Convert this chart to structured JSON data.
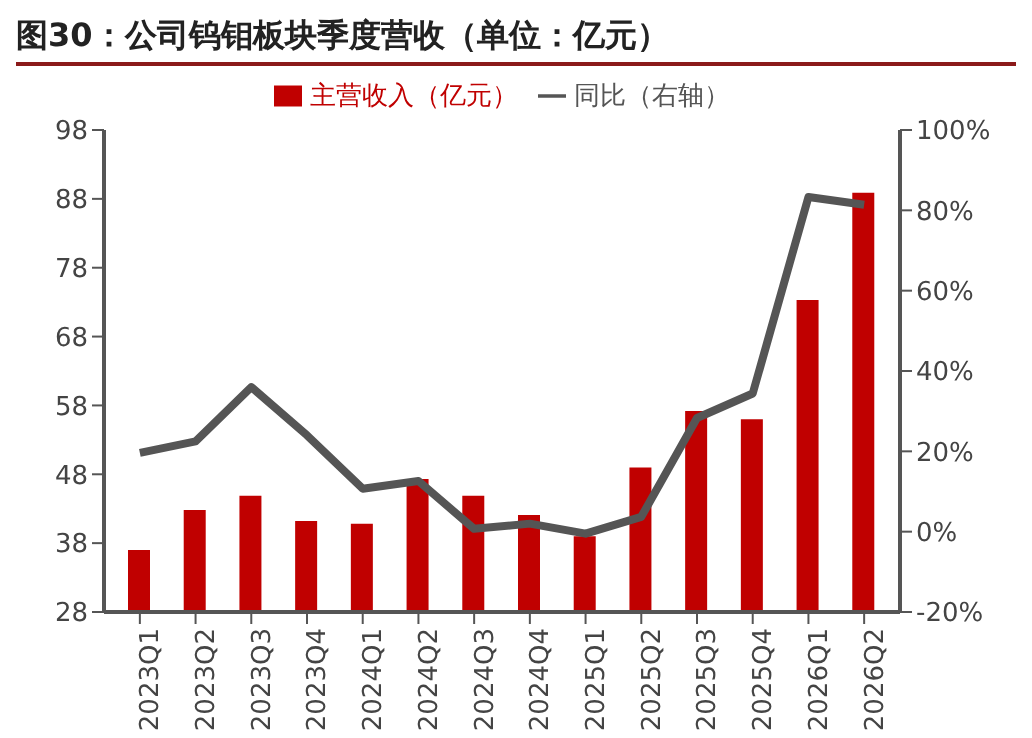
{
  "chart_data": {
    "type": "bar",
    "title": "图30：公司钨钼板块季度营收（单位：亿元）",
    "categories": [
      "2023Q1",
      "2023Q2",
      "2023Q3",
      "2023Q4",
      "2024Q1",
      "2024Q2",
      "2024Q3",
      "2024Q4",
      "2025Q1",
      "2025Q2",
      "2025Q3",
      "2025Q4",
      "2026Q1",
      "2026Q2"
    ],
    "series": [
      {
        "name": "主营收入（亿元）",
        "color": "#c00000",
        "values": [
          37.0,
          42.8,
          44.9,
          41.2,
          40.8,
          47.3,
          44.9,
          42.1,
          39.0,
          49.0,
          57.2,
          56.0,
          73.3,
          88.9
        ]
      },
      {
        "name": "同比（右轴）",
        "type": "line",
        "axis": "y2",
        "color": "#555555",
        "values": [
          19.6,
          22.5,
          36.0,
          24.0,
          10.7,
          12.6,
          0.7,
          2.0,
          -0.5,
          3.7,
          28.3,
          34.4,
          83.3,
          81.4
        ]
      }
    ],
    "ylim": [
      28,
      98
    ],
    "yticks": [
      28,
      38,
      48,
      58,
      68,
      78,
      88,
      98
    ],
    "y2lim": [
      -20,
      100
    ],
    "y2ticks": [
      {
        "value": -20,
        "label": "-20%"
      },
      {
        "value": 0,
        "label": "0%"
      },
      {
        "value": 20,
        "label": "20%"
      },
      {
        "value": 40,
        "label": "40%"
      },
      {
        "value": 60,
        "label": "60%"
      },
      {
        "value": 80,
        "label": "80%"
      },
      {
        "value": 100,
        "label": "100%"
      }
    ],
    "legend": "top",
    "marker": "none",
    "line_style": "solid"
  }
}
